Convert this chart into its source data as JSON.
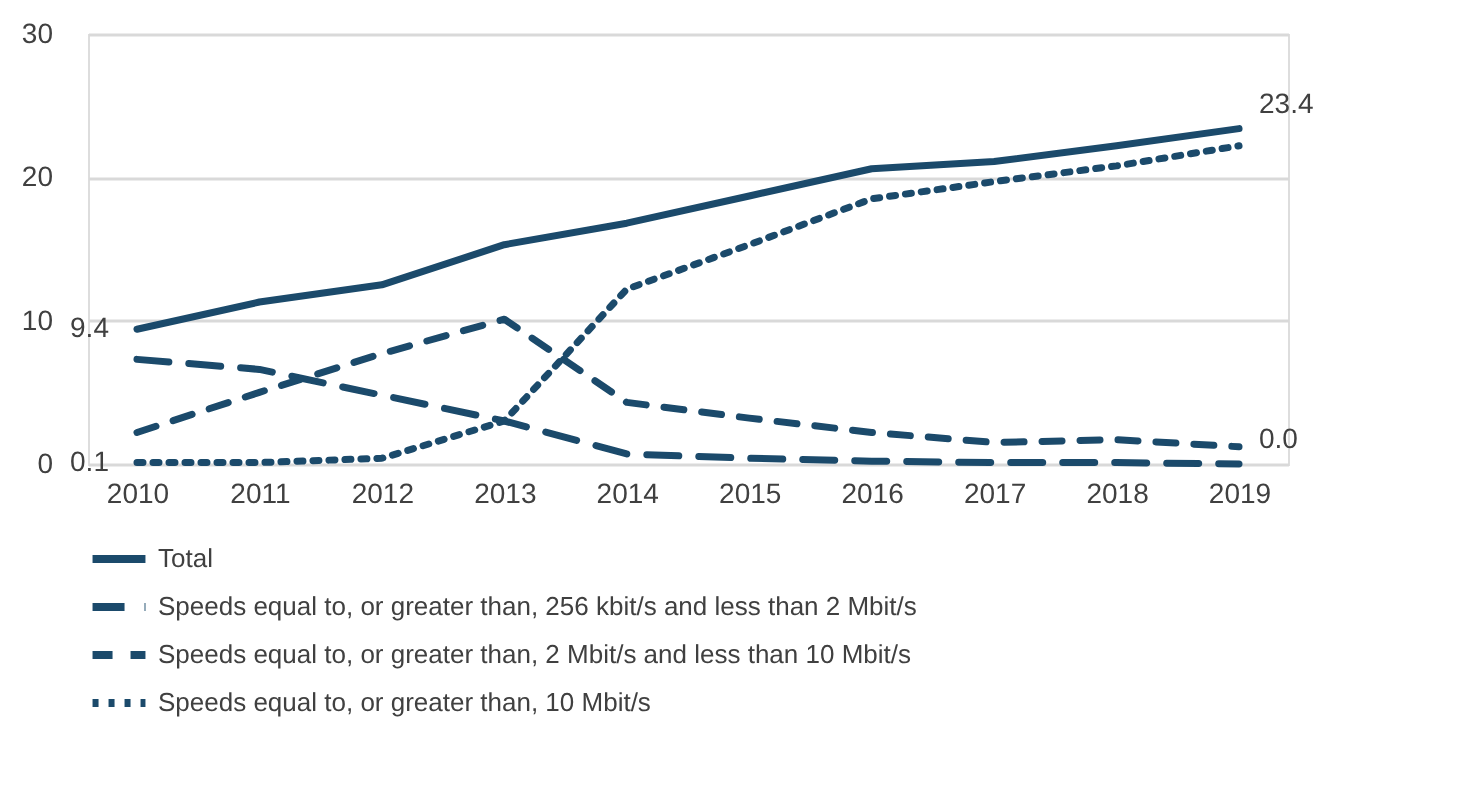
{
  "chart_data": {
    "type": "line",
    "categories": [
      "2010",
      "2011",
      "2012",
      "2013",
      "2014",
      "2015",
      "2016",
      "2017",
      "2018",
      "2019"
    ],
    "ylim": [
      0,
      30
    ],
    "yticks": [
      0,
      10,
      20,
      30
    ],
    "grid": "y",
    "legend": "bottom",
    "marker": "none",
    "series": [
      {
        "name": "Total",
        "color": "#1b4a6b",
        "line_style": "solid",
        "values": [
          9.4,
          11.3,
          12.5,
          15.3,
          16.8,
          18.7,
          20.6,
          21.1,
          22.2,
          23.4
        ],
        "value_labels": [
          "9.4",
          null,
          null,
          null,
          null,
          null,
          null,
          null,
          null,
          "23.4"
        ]
      },
      {
        "name": "Speeds equal to, or greater than, 256 kbit/s and less than 2 Mbit/s",
        "color": "#1b4a6b",
        "line_style": "dashed",
        "values": [
          7.3,
          6.6,
          4.8,
          3.0,
          0.7,
          0.4,
          0.2,
          0.1,
          0.1,
          0.0
        ],
        "value_labels": [
          null,
          null,
          null,
          null,
          null,
          null,
          null,
          null,
          null,
          "0.0"
        ]
      },
      {
        "name": "Speeds equal to, or greater than, 2 Mbit/s and less than 10 Mbit/s",
        "color": "#1b4a6b",
        "line_style": "dashed",
        "values": [
          2.2,
          5.0,
          7.7,
          10.1,
          4.3,
          3.2,
          2.2,
          1.5,
          1.7,
          1.2
        ]
      },
      {
        "name": "Speeds equal to, or greater than, 10 Mbit/s",
        "color": "#1b4a6b",
        "line_style": "dotted",
        "values": [
          0.1,
          0.1,
          0.4,
          3.0,
          12.2,
          15.3,
          18.5,
          19.7,
          20.8,
          22.2
        ],
        "value_labels": [
          "0.1",
          null,
          null,
          null,
          null,
          null,
          null,
          null,
          null,
          null
        ]
      }
    ]
  }
}
